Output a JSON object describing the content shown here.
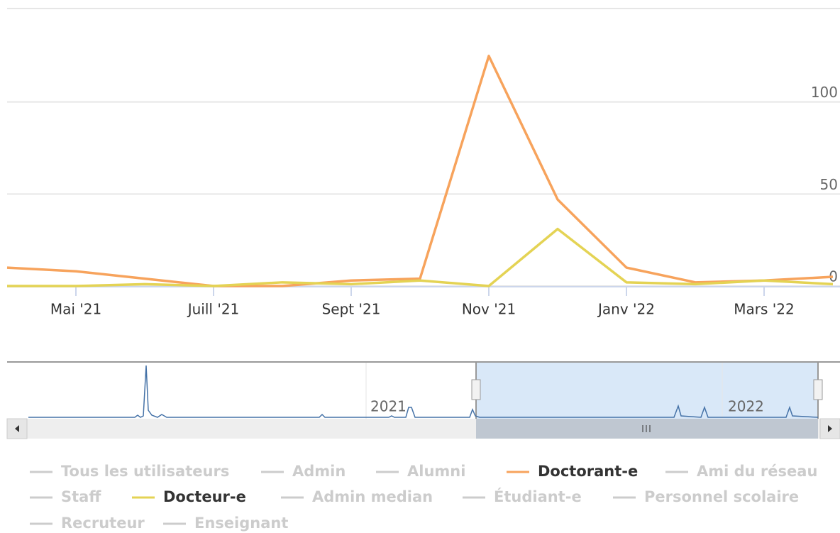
{
  "chart_data": {
    "type": "line",
    "x": [
      0,
      1,
      2,
      3,
      4,
      5,
      6,
      7,
      8,
      9,
      10,
      11,
      12
    ],
    "xlim": [
      0,
      12
    ],
    "xticks": [
      {
        "value": 1,
        "label": "Mai '21"
      },
      {
        "value": 3,
        "label": "Juill '21"
      },
      {
        "value": 5,
        "label": "Sept '21"
      },
      {
        "value": 7,
        "label": "Nov '21"
      },
      {
        "value": 9,
        "label": "Janv '22"
      },
      {
        "value": 11,
        "label": "Mars '22"
      }
    ],
    "ylim": [
      0,
      150
    ],
    "yticks": [
      0,
      50,
      100
    ],
    "grid": true,
    "navigator_labels": [
      "2021",
      "2022"
    ],
    "series": [
      {
        "name": "Tous les utilisateurs",
        "visible": false
      },
      {
        "name": "Admin",
        "visible": false
      },
      {
        "name": "Alumni",
        "visible": false
      },
      {
        "name": "Doctorant-e",
        "visible": true,
        "color": "#f7a35c",
        "values": [
          10,
          8,
          4,
          0,
          0,
          3,
          4,
          125,
          47,
          10,
          2,
          3,
          5
        ]
      },
      {
        "name": "Ami du réseau",
        "visible": false
      },
      {
        "name": "Staff",
        "visible": false
      },
      {
        "name": "Docteur-e",
        "visible": true,
        "color": "#e4d354",
        "values": [
          0,
          0,
          1,
          0,
          2,
          1,
          3,
          0,
          31,
          2,
          1,
          3,
          1
        ]
      },
      {
        "name": "Admin median",
        "visible": false
      },
      {
        "name": "Étudiant-e",
        "visible": false
      },
      {
        "name": "Personnel scolaire",
        "visible": false
      },
      {
        "name": "Recruteur",
        "visible": false
      },
      {
        "name": "Enseignant",
        "visible": false
      }
    ]
  }
}
